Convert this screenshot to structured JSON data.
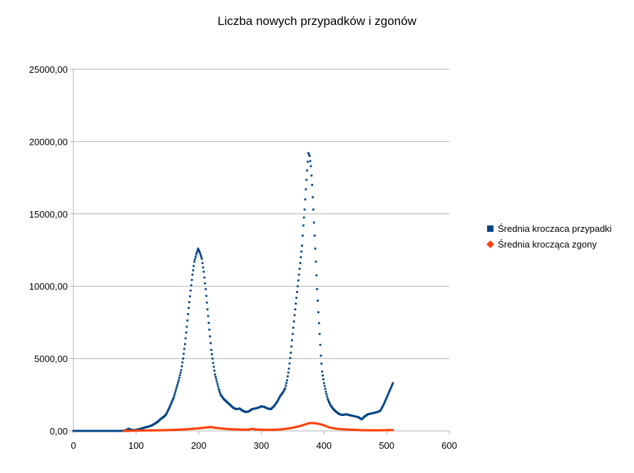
{
  "chart_data": {
    "type": "scatter",
    "title": "Liczba nowych przypadków i zgonów",
    "xlabel": "",
    "ylabel": "",
    "xlim": [
      0,
      600
    ],
    "ylim": [
      0,
      25000
    ],
    "x_ticks": [
      "0",
      "100",
      "200",
      "300",
      "400",
      "500",
      "600"
    ],
    "y_ticks": [
      "0,00",
      "5000,00",
      "10000,00",
      "15000,00",
      "20000,00",
      "25000,00"
    ],
    "grid": "horizontal",
    "legend": "right",
    "series": [
      {
        "name": "Średnia kroczaca przypadki",
        "color": "#004586",
        "marker": "square",
        "points": [
          [
            0,
            0
          ],
          [
            10,
            0
          ],
          [
            20,
            0
          ],
          [
            30,
            0
          ],
          [
            40,
            0
          ],
          [
            50,
            0
          ],
          [
            60,
            0
          ],
          [
            70,
            0
          ],
          [
            80,
            10
          ],
          [
            85,
            60
          ],
          [
            88,
            150
          ],
          [
            92,
            80
          ],
          [
            96,
            50
          ],
          [
            100,
            80
          ],
          [
            105,
            120
          ],
          [
            110,
            180
          ],
          [
            115,
            250
          ],
          [
            120,
            300
          ],
          [
            125,
            380
          ],
          [
            130,
            500
          ],
          [
            135,
            650
          ],
          [
            140,
            850
          ],
          [
            145,
            1000
          ],
          [
            148,
            1150
          ],
          [
            152,
            1500
          ],
          [
            156,
            1900
          ],
          [
            160,
            2300
          ],
          [
            164,
            2900
          ],
          [
            168,
            3500
          ],
          [
            172,
            4200
          ],
          [
            175,
            5000
          ],
          [
            178,
            6000
          ],
          [
            181,
            7200
          ],
          [
            184,
            8500
          ],
          [
            187,
            9700
          ],
          [
            190,
            10800
          ],
          [
            193,
            11700
          ],
          [
            196,
            12200
          ],
          [
            199,
            12600
          ],
          [
            202,
            12300
          ],
          [
            205,
            11900
          ],
          [
            208,
            11000
          ],
          [
            211,
            9800
          ],
          [
            214,
            8400
          ],
          [
            217,
            7000
          ],
          [
            220,
            5600
          ],
          [
            223,
            4700
          ],
          [
            226,
            3900
          ],
          [
            229,
            3400
          ],
          [
            232,
            2900
          ],
          [
            235,
            2500
          ],
          [
            240,
            2200
          ],
          [
            245,
            2000
          ],
          [
            250,
            1800
          ],
          [
            255,
            1600
          ],
          [
            260,
            1500
          ],
          [
            265,
            1550
          ],
          [
            270,
            1400
          ],
          [
            275,
            1300
          ],
          [
            280,
            1350
          ],
          [
            285,
            1500
          ],
          [
            290,
            1550
          ],
          [
            295,
            1600
          ],
          [
            300,
            1700
          ],
          [
            305,
            1650
          ],
          [
            310,
            1550
          ],
          [
            315,
            1500
          ],
          [
            320,
            1700
          ],
          [
            325,
            2000
          ],
          [
            330,
            2400
          ],
          [
            335,
            2700
          ],
          [
            338,
            2950
          ],
          [
            341,
            3500
          ],
          [
            344,
            4300
          ],
          [
            347,
            5400
          ],
          [
            350,
            6700
          ],
          [
            353,
            8000
          ],
          [
            356,
            9200
          ],
          [
            359,
            10400
          ],
          [
            362,
            11600
          ],
          [
            365,
            12800
          ],
          [
            367,
            14200
          ],
          [
            369,
            15300
          ],
          [
            371,
            16700
          ],
          [
            373,
            18000
          ],
          [
            375,
            19200
          ],
          [
            377,
            19000
          ],
          [
            379,
            18300
          ],
          [
            381,
            17000
          ],
          [
            383,
            15300
          ],
          [
            385,
            13500
          ],
          [
            387,
            11700
          ],
          [
            389,
            9800
          ],
          [
            391,
            8200
          ],
          [
            393,
            6700
          ],
          [
            395,
            5200
          ],
          [
            397,
            4100
          ],
          [
            400,
            3300
          ],
          [
            403,
            2700
          ],
          [
            406,
            2200
          ],
          [
            410,
            1800
          ],
          [
            415,
            1500
          ],
          [
            420,
            1300
          ],
          [
            425,
            1150
          ],
          [
            430,
            1100
          ],
          [
            435,
            1150
          ],
          [
            440,
            1100
          ],
          [
            445,
            1050
          ],
          [
            450,
            1000
          ],
          [
            455,
            950
          ],
          [
            460,
            800
          ],
          [
            465,
            1000
          ],
          [
            470,
            1150
          ],
          [
            475,
            1200
          ],
          [
            480,
            1250
          ],
          [
            485,
            1300
          ],
          [
            490,
            1400
          ],
          [
            495,
            1800
          ],
          [
            500,
            2300
          ],
          [
            505,
            2800
          ],
          [
            510,
            3300
          ]
        ]
      },
      {
        "name": "Średnia krocząca zgony",
        "color": "#ff420e",
        "marker": "diamond",
        "points": [
          [
            80,
            0
          ],
          [
            90,
            10
          ],
          [
            100,
            20
          ],
          [
            110,
            30
          ],
          [
            120,
            35
          ],
          [
            130,
            40
          ],
          [
            140,
            45
          ],
          [
            150,
            55
          ],
          [
            160,
            70
          ],
          [
            170,
            90
          ],
          [
            180,
            110
          ],
          [
            190,
            140
          ],
          [
            200,
            180
          ],
          [
            205,
            200
          ],
          [
            210,
            230
          ],
          [
            215,
            250
          ],
          [
            220,
            270
          ],
          [
            225,
            220
          ],
          [
            230,
            200
          ],
          [
            240,
            150
          ],
          [
            250,
            120
          ],
          [
            260,
            100
          ],
          [
            270,
            90
          ],
          [
            280,
            85
          ],
          [
            285,
            150
          ],
          [
            290,
            100
          ],
          [
            300,
            80
          ],
          [
            310,
            70
          ],
          [
            320,
            80
          ],
          [
            330,
            100
          ],
          [
            340,
            150
          ],
          [
            350,
            220
          ],
          [
            360,
            320
          ],
          [
            365,
            380
          ],
          [
            370,
            450
          ],
          [
            375,
            520
          ],
          [
            380,
            550
          ],
          [
            385,
            530
          ],
          [
            390,
            500
          ],
          [
            395,
            450
          ],
          [
            400,
            380
          ],
          [
            405,
            300
          ],
          [
            410,
            220
          ],
          [
            420,
            150
          ],
          [
            430,
            110
          ],
          [
            440,
            90
          ],
          [
            450,
            70
          ],
          [
            460,
            50
          ],
          [
            470,
            45
          ],
          [
            480,
            40
          ],
          [
            490,
            45
          ],
          [
            500,
            55
          ],
          [
            510,
            60
          ]
        ]
      }
    ]
  }
}
